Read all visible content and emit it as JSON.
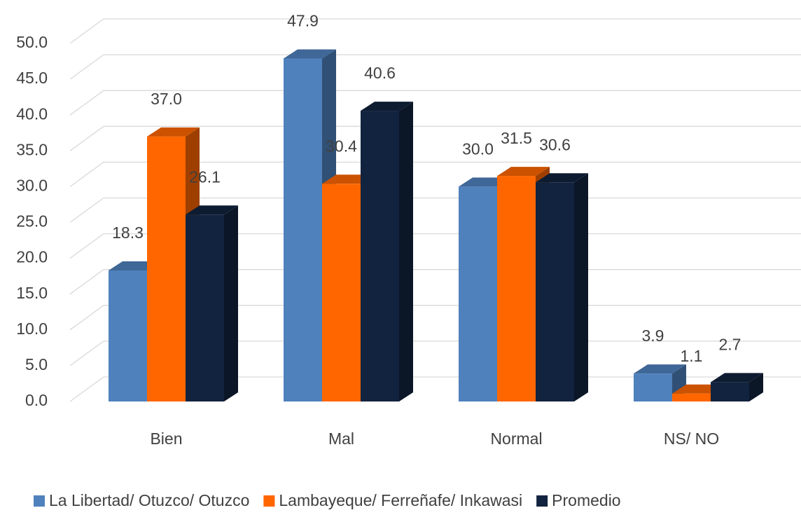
{
  "chart_data": {
    "type": "bar3d",
    "categories": [
      "Bien",
      "Mal",
      "Normal",
      "NS/ NO"
    ],
    "series": [
      {
        "name": "La Libertad/ Otuzco/ Otuzco",
        "color": "#4f81bd",
        "values": [
          18.3,
          47.9,
          30.0,
          3.9
        ],
        "value_labels": [
          "18.3",
          "47.9",
          "30.0",
          "3.9"
        ]
      },
      {
        "name": "Lambayeque/ Ferreñafe/ Inkawasi",
        "color": "#ff6600",
        "values": [
          37.0,
          30.4,
          31.5,
          1.1
        ],
        "value_labels": [
          "37.0",
          "30.4",
          "31.5",
          "1.1"
        ]
      },
      {
        "name": "Promedio",
        "color": "#12233f",
        "values": [
          26.1,
          40.6,
          30.6,
          2.7
        ],
        "value_labels": [
          "26.1",
          "40.6",
          "30.6",
          "2.7"
        ]
      }
    ],
    "ylim": [
      0,
      50
    ],
    "yticks": [
      {
        "value": 0,
        "label": "0.0"
      },
      {
        "value": 5,
        "label": "5.0"
      },
      {
        "value": 10,
        "label": "10.0"
      },
      {
        "value": 15,
        "label": "15.0"
      },
      {
        "value": 20,
        "label": "20.0"
      },
      {
        "value": 25,
        "label": "25.0"
      },
      {
        "value": 30,
        "label": "30.0"
      },
      {
        "value": 35,
        "label": "35.0"
      },
      {
        "value": 40,
        "label": "40.0"
      },
      {
        "value": 45,
        "label": "45.0"
      },
      {
        "value": 50,
        "label": "50.0"
      }
    ],
    "grid": true,
    "legend": "bottom"
  }
}
